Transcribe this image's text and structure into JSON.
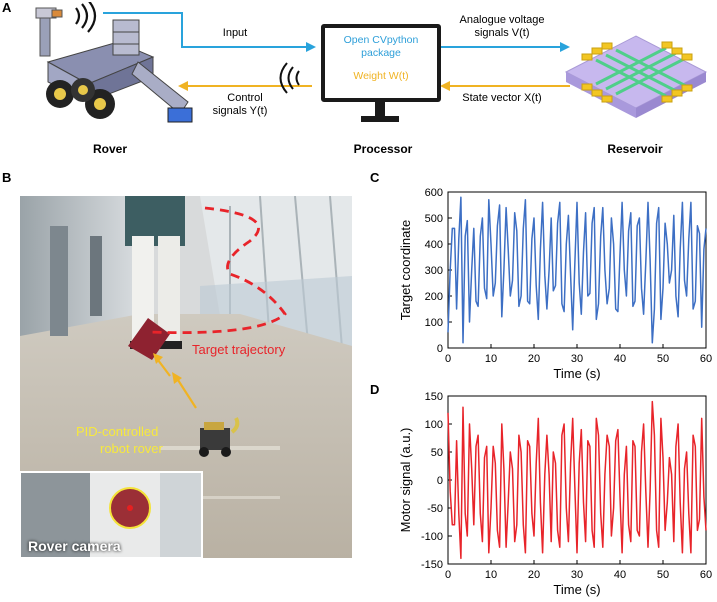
{
  "panelA": {
    "letter": "A",
    "rover_caption": "Rover",
    "processor_caption": "Processor",
    "reservoir_caption": "Reservoir",
    "input_label": "Input",
    "control_label_1": "Control",
    "control_label_2": "signals Y(t)",
    "screen_line1": "Open CVpython",
    "screen_line2": "package",
    "screen_weight": "Weight W(t)",
    "analogue_label_1": "Analogue voltage",
    "analogue_label_2": "signals V(t)",
    "state_label": "State vector X(t)",
    "colors": {
      "blue": "#29a3dc",
      "orange": "#f0b323",
      "screen_blue": "#2e9fd9"
    }
  },
  "panelB": {
    "letter": "B",
    "target_trajectory": "Target trajectory",
    "pid_label_1": "PID-controlled",
    "pid_label_2": "robot rover",
    "rover_camera": "Rover camera",
    "colors": {
      "trajectory": "#e8242a",
      "pid": "#f7e93c",
      "arrow": "#f0b323"
    }
  },
  "chart_data": [
    {
      "panel": "C",
      "type": "line",
      "xlabel": "Time (s)",
      "ylabel": "Target coordinate",
      "xlim": [
        0,
        60
      ],
      "ylim": [
        0,
        600
      ],
      "xticks": [
        "0",
        "10",
        "20",
        "30",
        "40",
        "50",
        "60"
      ],
      "yticks": [
        "0",
        "100",
        "200",
        "300",
        "400",
        "500",
        "600"
      ],
      "color": "#3d6fc4",
      "x": [
        0,
        0.5,
        1,
        1.5,
        2,
        2.5,
        3,
        3.5,
        4,
        4.5,
        5,
        5.5,
        6,
        6.5,
        7,
        7.5,
        8,
        8.5,
        9,
        9.5,
        10,
        10.5,
        11,
        11.5,
        12,
        12.5,
        13,
        13.5,
        14,
        14.5,
        15,
        15.5,
        16,
        16.5,
        17,
        17.5,
        18,
        18.5,
        19,
        19.5,
        20,
        20.5,
        21,
        21.5,
        22,
        22.5,
        23,
        23.5,
        24,
        24.5,
        25,
        25.5,
        26,
        26.5,
        27,
        27.5,
        28,
        28.5,
        29,
        29.5,
        30,
        30.5,
        31,
        31.5,
        32,
        32.5,
        33,
        33.5,
        34,
        34.5,
        35,
        35.5,
        36,
        36.5,
        37,
        37.5,
        38,
        38.5,
        39,
        39.5,
        40,
        40.5,
        41,
        41.5,
        42,
        42.5,
        43,
        43.5,
        44,
        44.5,
        45,
        45.5,
        46,
        46.5,
        47,
        47.5,
        48,
        48.5,
        49,
        49.5,
        50,
        50.5,
        51,
        51.5,
        52,
        52.5,
        53,
        53.5,
        54,
        54.5,
        55,
        55.5,
        56,
        56.5,
        57,
        57.5,
        58,
        58.5,
        59,
        59.5,
        60
      ],
      "y": [
        60,
        300,
        460,
        460,
        150,
        420,
        580,
        20,
        430,
        490,
        100,
        300,
        460,
        180,
        160,
        430,
        500,
        230,
        190,
        570,
        400,
        200,
        250,
        470,
        550,
        120,
        300,
        540,
        380,
        200,
        260,
        520,
        450,
        160,
        200,
        460,
        570,
        180,
        170,
        420,
        500,
        240,
        110,
        380,
        560,
        280,
        150,
        300,
        500,
        220,
        240,
        480,
        560,
        170,
        140,
        400,
        510,
        280,
        70,
        320,
        560,
        250,
        130,
        370,
        520,
        200,
        210,
        480,
        540,
        110,
        170,
        430,
        540,
        300,
        170,
        230,
        500,
        400,
        150,
        140,
        360,
        560,
        300,
        200,
        450,
        520,
        160,
        180,
        470,
        500,
        230,
        130,
        330,
        560,
        340,
        20,
        150,
        480,
        540,
        110,
        230,
        480,
        400,
        250,
        300,
        510,
        200,
        120,
        380,
        560,
        260,
        200,
        420,
        560,
        150,
        180,
        470,
        440,
        80,
        380,
        460
      ]
    },
    {
      "panel": "D",
      "type": "line",
      "xlabel": "Time (s)",
      "ylabel": "Motor signal (a.u.)",
      "xlim": [
        0,
        60
      ],
      "ylim": [
        -150,
        150
      ],
      "xticks": [
        "0",
        "10",
        "20",
        "30",
        "40",
        "50",
        "60"
      ],
      "yticks": [
        "-150",
        "-100",
        "-50",
        "0",
        "50",
        "100",
        "150"
      ],
      "color": "#e8242a",
      "x": [
        0,
        0.5,
        1,
        1.5,
        2,
        2.5,
        3,
        3.5,
        4,
        4.5,
        5,
        5.5,
        6,
        6.5,
        7,
        7.5,
        8,
        8.5,
        9,
        9.5,
        10,
        10.5,
        11,
        11.5,
        12,
        12.5,
        13,
        13.5,
        14,
        14.5,
        15,
        15.5,
        16,
        16.5,
        17,
        17.5,
        18,
        18.5,
        19,
        19.5,
        20,
        20.5,
        21,
        21.5,
        22,
        22.5,
        23,
        23.5,
        24,
        24.5,
        25,
        25.5,
        26,
        26.5,
        27,
        27.5,
        28,
        28.5,
        29,
        29.5,
        30,
        30.5,
        31,
        31.5,
        32,
        32.5,
        33,
        33.5,
        34,
        34.5,
        35,
        35.5,
        36,
        36.5,
        37,
        37.5,
        38,
        38.5,
        39,
        39.5,
        40,
        40.5,
        41,
        41.5,
        42,
        42.5,
        43,
        43.5,
        44,
        44.5,
        45,
        45.5,
        46,
        46.5,
        47,
        47.5,
        48,
        48.5,
        49,
        49.5,
        50,
        50.5,
        51,
        51.5,
        52,
        52.5,
        53,
        53.5,
        54,
        54.5,
        55,
        55.5,
        56,
        56.5,
        57,
        57.5,
        58,
        58.5,
        59,
        59.5,
        60
      ],
      "y": [
        120,
        -20,
        -80,
        -80,
        70,
        -60,
        -140,
        130,
        -60,
        -100,
        100,
        20,
        -80,
        60,
        80,
        -60,
        -110,
        40,
        60,
        -130,
        -50,
        60,
        30,
        -90,
        -120,
        100,
        20,
        -120,
        -40,
        50,
        20,
        -110,
        -80,
        80,
        50,
        -80,
        -130,
        70,
        60,
        -60,
        -100,
        30,
        110,
        -40,
        -130,
        10,
        80,
        10,
        -110,
        50,
        30,
        -90,
        -120,
        80,
        100,
        -50,
        -110,
        30,
        110,
        -10,
        -130,
        30,
        90,
        -40,
        -110,
        70,
        60,
        -90,
        -120,
        110,
        80,
        -60,
        -120,
        10,
        80,
        60,
        -100,
        -50,
        70,
        90,
        -30,
        -130,
        10,
        60,
        -80,
        -110,
        70,
        60,
        -90,
        -100,
        50,
        100,
        -20,
        -120,
        -20,
        140,
        80,
        -90,
        -120,
        110,
        40,
        -90,
        -40,
        40,
        10,
        -110,
        60,
        100,
        -40,
        -130,
        20,
        50,
        -60,
        -130,
        80,
        60,
        -90,
        -70,
        110,
        -30,
        -90
      ]
    }
  ]
}
